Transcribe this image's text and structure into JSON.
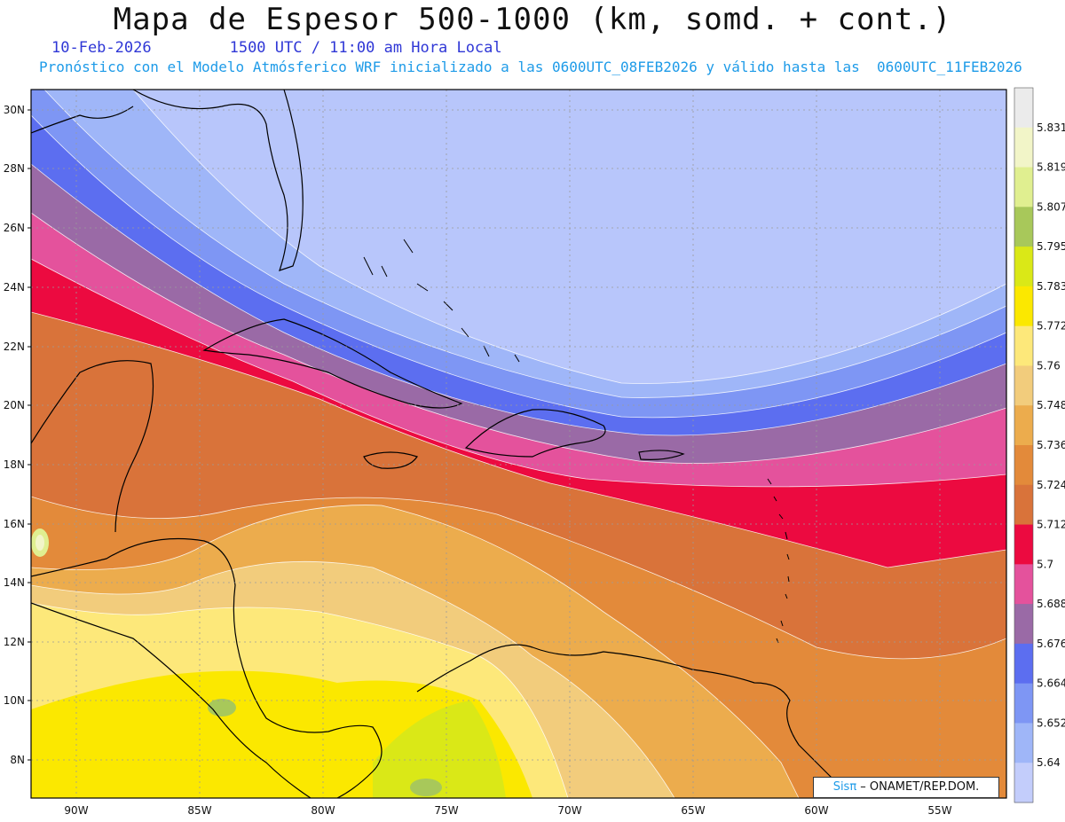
{
  "header": {
    "title": "Mapa de Espesor 500-1000 (km, somd. + cont.)",
    "date": "10-Feb-2026",
    "time": "1500 UTC / 11:00 am Hora Local",
    "forecast_note": "Pronóstico con el Modelo Atmósferico WRF inicializado a las 0600UTC_08FEB2026 y válido hasta las  0600UTC_11FEB2026"
  },
  "map": {
    "lat_labels": [
      "30N",
      "28N",
      "26N",
      "24N",
      "22N",
      "20N",
      "18N",
      "16N",
      "14N",
      "12N",
      "10N",
      "8N"
    ],
    "lon_labels": [
      "90W",
      "85W",
      "80W",
      "75W",
      "70W",
      "65W",
      "60W",
      "55W"
    ],
    "grid": true
  },
  "colorbar": {
    "labels": [
      "5.831",
      "5.819",
      "5.807",
      "5.795",
      "5.783",
      "5.772",
      "5.76",
      "5.748",
      "5.736",
      "5.724",
      "5.712",
      "5.7",
      "5.688",
      "5.676",
      "5.664",
      "5.652",
      "5.64"
    ],
    "colors": [
      "#ebebeb",
      "#f2f5c8",
      "#e0ef90",
      "#a8c85a",
      "#dae817",
      "#fbe800",
      "#fde87a",
      "#f2cc7c",
      "#ecac4d",
      "#e38a3a",
      "#d9733a",
      "#ec0a40",
      "#e4529c",
      "#9a6aa6",
      "#5c6ef0",
      "#7e96f4",
      "#9fb6f8",
      "#c3cdfb"
    ]
  },
  "credit": {
    "brand": "Sisπ",
    "text": " – ONAMET/REP.DOM."
  }
}
